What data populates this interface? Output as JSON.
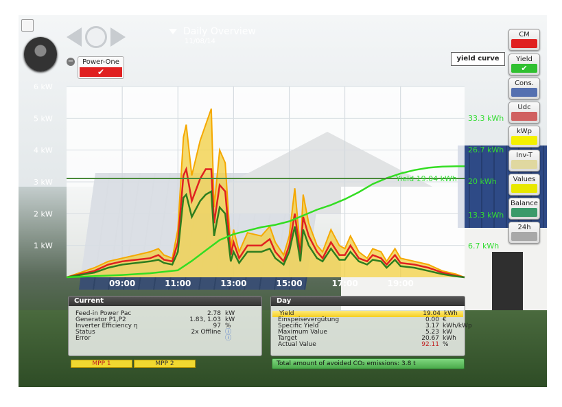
{
  "header": {
    "title": "Daily Overview",
    "date": "11/08/14",
    "inverter_label": "Power-One",
    "view_label": "yield curve"
  },
  "side_buttons": [
    {
      "label": "CM",
      "color": "#e02020",
      "checked": false
    },
    {
      "label": "Yield",
      "color": "#30c030",
      "checked": true
    },
    {
      "label": "Cons.",
      "color": "#5570b0",
      "checked": false
    },
    {
      "label": "Udc",
      "color": "#d06060",
      "checked": false
    },
    {
      "label": "kWp",
      "color": "#f4f000",
      "checked": false
    },
    {
      "label": "Inv-T",
      "color": "#e0d8a0",
      "checked": false
    },
    {
      "label": "Values",
      "color": "#e8e800",
      "checked": false
    },
    {
      "label": "Balance",
      "color": "#3a9a6a",
      "checked": false
    },
    {
      "label": "24h",
      "color": "#a8a8a8",
      "checked": false
    }
  ],
  "chart_data": {
    "type": "area",
    "title": "Daily Overview",
    "y_left_ticks": [
      "1 kW",
      "2 kW",
      "3 kW",
      "4 kW",
      "5 kW",
      "6 kW"
    ],
    "y_left_range": [
      0,
      6
    ],
    "y_right_ticks": [
      "6.7 kWh",
      "13.3 kWh",
      "20 kWh",
      "26.7 kWh",
      "33.3 kWh"
    ],
    "x_ticks": [
      "09:00",
      "11:00",
      "13:00",
      "15:00",
      "17:00",
      "19:00"
    ],
    "x_range_hours": [
      7.0,
      21.3
    ],
    "target_line_label": "Yield 19.04 kWh",
    "target_line_kwh": 19.04,
    "series": [
      {
        "name": "MPP 2",
        "color": "#f5a800",
        "type": "area",
        "x": [
          7.0,
          8.0,
          8.5,
          9.0,
          9.5,
          10.0,
          10.3,
          10.5,
          10.8,
          11.0,
          11.2,
          11.3,
          11.5,
          11.8,
          12.0,
          12.2,
          12.3,
          12.5,
          12.7,
          12.9,
          13.0,
          13.2,
          13.5,
          14.0,
          14.3,
          14.5,
          14.8,
          15.0,
          15.2,
          15.4,
          15.5,
          15.7,
          16.0,
          16.2,
          16.5,
          16.8,
          17.0,
          17.2,
          17.5,
          17.8,
          18.0,
          18.3,
          18.5,
          18.8,
          19.0,
          19.5,
          20.0,
          20.5,
          21.0,
          21.3
        ],
        "values": [
          0.0,
          0.3,
          0.5,
          0.6,
          0.7,
          0.8,
          0.9,
          0.7,
          0.6,
          1.5,
          4.4,
          4.8,
          3.2,
          4.3,
          4.8,
          5.3,
          2.2,
          4.0,
          3.6,
          0.9,
          1.5,
          0.8,
          1.4,
          1.3,
          1.6,
          1.1,
          0.7,
          1.3,
          2.8,
          0.9,
          2.6,
          1.7,
          1.0,
          0.8,
          1.5,
          1.0,
          0.9,
          1.3,
          0.8,
          0.6,
          0.9,
          0.8,
          0.5,
          0.9,
          0.6,
          0.5,
          0.4,
          0.2,
          0.1,
          0.0
        ]
      },
      {
        "name": "MPP 1",
        "color": "#e02020",
        "type": "line",
        "x": [
          7.0,
          8.0,
          8.5,
          9.0,
          9.5,
          10.0,
          10.3,
          10.5,
          10.8,
          11.0,
          11.2,
          11.3,
          11.5,
          11.8,
          12.0,
          12.2,
          12.3,
          12.5,
          12.7,
          12.9,
          13.0,
          13.2,
          13.5,
          14.0,
          14.3,
          14.5,
          14.8,
          15.0,
          15.2,
          15.4,
          15.5,
          15.7,
          16.0,
          16.2,
          16.5,
          16.8,
          17.0,
          17.2,
          17.5,
          17.8,
          18.0,
          18.3,
          18.5,
          18.8,
          19.0,
          19.5,
          20.0,
          20.5,
          21.0,
          21.3
        ],
        "values": [
          0.0,
          0.2,
          0.4,
          0.5,
          0.55,
          0.6,
          0.7,
          0.55,
          0.5,
          1.1,
          3.2,
          3.4,
          2.4,
          3.1,
          3.4,
          3.4,
          1.7,
          2.9,
          2.7,
          0.7,
          1.1,
          0.6,
          1.0,
          1.0,
          1.2,
          0.8,
          0.5,
          1.0,
          2.0,
          0.7,
          1.9,
          1.3,
          0.8,
          0.6,
          1.1,
          0.7,
          0.7,
          1.0,
          0.6,
          0.5,
          0.7,
          0.6,
          0.4,
          0.7,
          0.45,
          0.4,
          0.3,
          0.15,
          0.05,
          0.0
        ]
      },
      {
        "name": "Feed-in Power Pac",
        "color": "#2e7d1e",
        "type": "line",
        "x": [
          7.0,
          8.0,
          8.5,
          9.0,
          9.5,
          10.0,
          10.3,
          10.5,
          10.8,
          11.0,
          11.2,
          11.3,
          11.5,
          11.8,
          12.0,
          12.2,
          12.3,
          12.5,
          12.7,
          12.9,
          13.0,
          13.2,
          13.5,
          14.0,
          14.3,
          14.5,
          14.8,
          15.0,
          15.2,
          15.4,
          15.5,
          15.7,
          16.0,
          16.2,
          16.5,
          16.8,
          17.0,
          17.2,
          17.5,
          17.8,
          18.0,
          18.3,
          18.5,
          18.8,
          19.0,
          19.5,
          20.0,
          20.5,
          21.0,
          21.3
        ],
        "values": [
          0.0,
          0.15,
          0.3,
          0.4,
          0.45,
          0.5,
          0.55,
          0.45,
          0.4,
          0.8,
          2.5,
          2.6,
          1.9,
          2.4,
          2.6,
          2.7,
          1.3,
          2.2,
          2.0,
          0.5,
          0.8,
          0.45,
          0.8,
          0.8,
          0.9,
          0.6,
          0.4,
          0.8,
          1.6,
          0.5,
          1.5,
          1.0,
          0.6,
          0.5,
          0.9,
          0.55,
          0.55,
          0.8,
          0.5,
          0.4,
          0.55,
          0.5,
          0.3,
          0.55,
          0.35,
          0.3,
          0.2,
          0.1,
          0.03,
          0.0
        ]
      },
      {
        "name": "Yield",
        "color": "#33dd22",
        "type": "line",
        "unit": "kWh",
        "x": [
          7.0,
          9.0,
          10.0,
          11.0,
          11.5,
          12.0,
          12.5,
          13.0,
          13.5,
          14.0,
          14.5,
          15.0,
          15.5,
          16.0,
          16.5,
          17.0,
          17.5,
          18.0,
          18.5,
          19.0,
          19.5,
          20.0,
          20.5,
          21.0,
          21.3
        ],
        "values": [
          0.0,
          0.4,
          0.7,
          1.2,
          2.8,
          4.6,
          6.4,
          7.4,
          8.0,
          8.6,
          9.0,
          9.6,
          10.6,
          11.6,
          12.4,
          13.4,
          14.6,
          16.0,
          17.0,
          17.8,
          18.4,
          18.8,
          19.0,
          19.04,
          19.04
        ]
      }
    ]
  },
  "current_panel": {
    "title": "Current",
    "rows": [
      {
        "label": "Feed-in Power Pac",
        "value": "2.78",
        "unit": "kW"
      },
      {
        "label": "Generator P1,P2",
        "value": "1.83, 1.03",
        "unit": "kW"
      },
      {
        "label": "Inverter Efficiency η",
        "value": "97",
        "unit": "%"
      },
      {
        "label": "Status",
        "value": "2x Offline",
        "unit": "ⓘ"
      },
      {
        "label": "Error",
        "value": "",
        "unit": "ⓘ"
      }
    ]
  },
  "day_panel": {
    "title": "Day",
    "rows": [
      {
        "label": "Yield",
        "value": "19.04",
        "unit": "kWh"
      },
      {
        "label": "Einspeisevergütung",
        "value": "0.00",
        "unit": "€"
      },
      {
        "label": "Specific Yield",
        "value": "3.17",
        "unit": "kWh/kWp"
      },
      {
        "label": "Maximum Value",
        "value": "5.23",
        "unit": "kW"
      },
      {
        "label": "Target",
        "value": "20.67",
        "unit": "kWh"
      },
      {
        "label": "Actual Value",
        "value": "92.11",
        "unit": "%"
      }
    ],
    "co2_text": "Total amount of avoided CO₂  emissions: 3.8 t"
  },
  "legend": {
    "mpp1": "MPP 1",
    "mpp2": "MPP 2"
  },
  "icons": {
    "back": "triangle-left-icon",
    "zoom": "magnifier-icon",
    "forward": "triangle-right-icon",
    "collapse": "triangle-down-icon",
    "minus": "minus-circle-icon"
  }
}
